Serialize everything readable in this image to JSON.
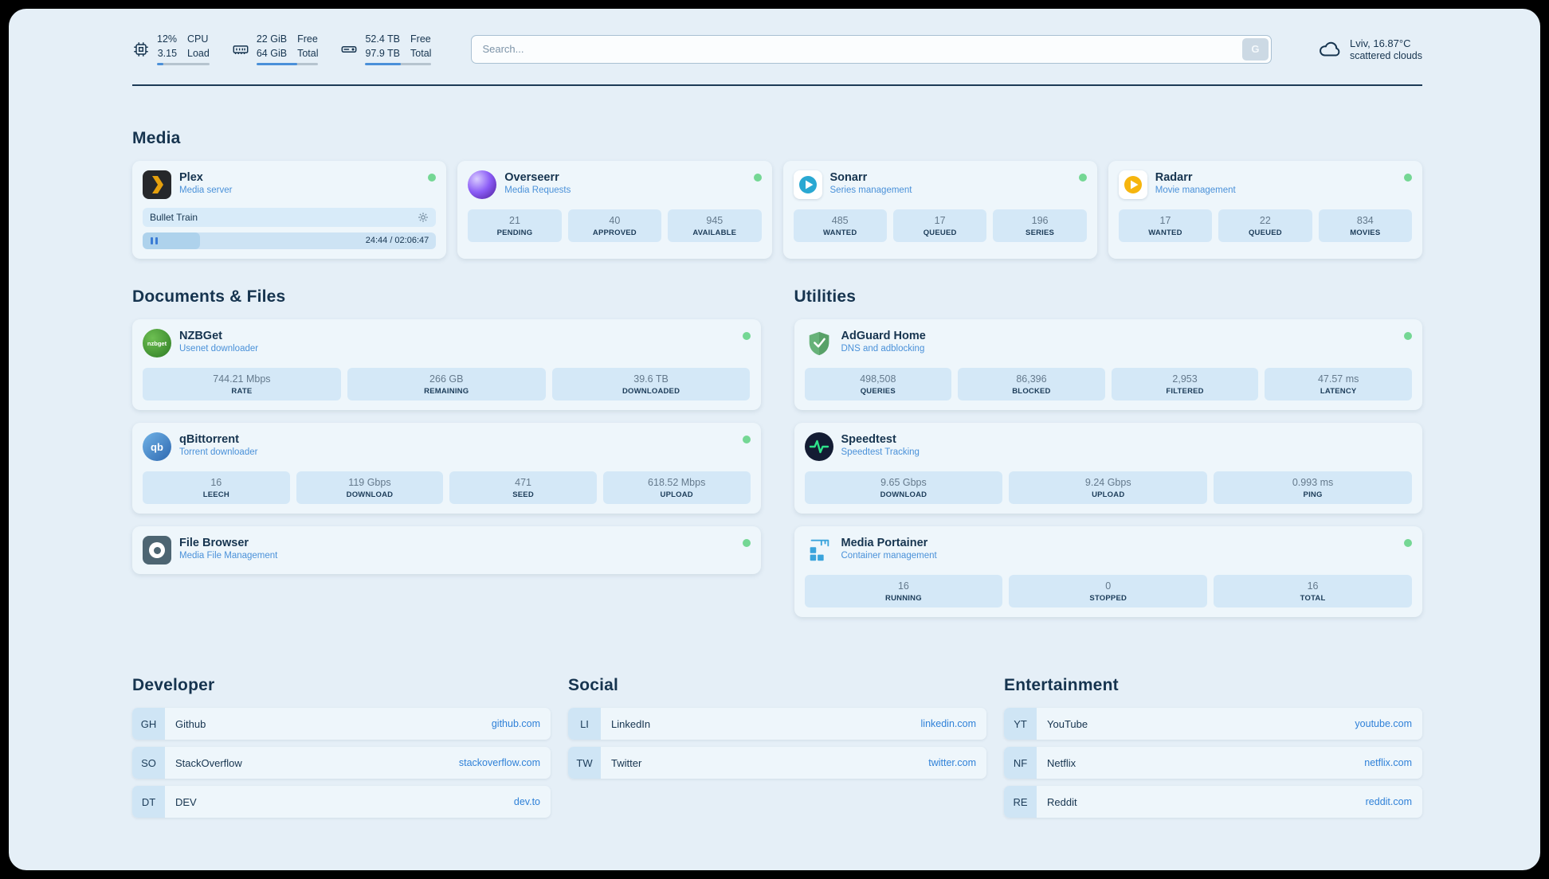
{
  "header": {
    "cpu": {
      "value": "12%",
      "label": "CPU",
      "value2": "3.15",
      "label2": "Load",
      "progress": 12
    },
    "ram": {
      "value": "22 GiB",
      "label": "Free",
      "value2": "64 GiB",
      "label2": "Total",
      "progress": 66
    },
    "disk": {
      "value": "52.4 TB",
      "label": "Free",
      "value2": "97.9 TB",
      "label2": "Total",
      "progress": 54
    },
    "search": {
      "placeholder": "Search...",
      "button_label": "G"
    },
    "weather": {
      "location": "Lviv, 16.87°C",
      "condition": "scattered clouds"
    }
  },
  "colors": {
    "accent_blue": "#4a91d9",
    "status_green": "#74d794",
    "link_blue": "#2f81d8",
    "page_bg": "#e5eff7",
    "stat_bg": "#d4e8f7"
  },
  "sections": {
    "media": {
      "title": "Media",
      "plex": {
        "name": "Plex",
        "subtitle": "Media server",
        "now_playing": "Bullet Train",
        "time": "24:44 / 02:06:47",
        "progress_percent": 19.5
      },
      "overseerr": {
        "name": "Overseerr",
        "subtitle": "Media Requests",
        "stats": [
          {
            "value": "21",
            "label": "PENDING"
          },
          {
            "value": "40",
            "label": "APPROVED"
          },
          {
            "value": "945",
            "label": "AVAILABLE"
          }
        ]
      },
      "sonarr": {
        "name": "Sonarr",
        "subtitle": "Series management",
        "stats": [
          {
            "value": "485",
            "label": "WANTED"
          },
          {
            "value": "17",
            "label": "QUEUED"
          },
          {
            "value": "196",
            "label": "SERIES"
          }
        ]
      },
      "radarr": {
        "name": "Radarr",
        "subtitle": "Movie management",
        "stats": [
          {
            "value": "17",
            "label": "WANTED"
          },
          {
            "value": "22",
            "label": "QUEUED"
          },
          {
            "value": "834",
            "label": "MOVIES"
          }
        ]
      }
    },
    "documents": {
      "title": "Documents & Files",
      "nzbget": {
        "name": "NZBGet",
        "subtitle": "Usenet downloader",
        "icon_text": "nzbget",
        "stats": [
          {
            "value": "744.21 Mbps",
            "label": "RATE"
          },
          {
            "value": "266 GB",
            "label": "REMAINING"
          },
          {
            "value": "39.6 TB",
            "label": "DOWNLOADED"
          }
        ]
      },
      "qbittorrent": {
        "name": "qBittorrent",
        "subtitle": "Torrent downloader",
        "icon_text": "qb",
        "stats": [
          {
            "value": "16",
            "label": "LEECH"
          },
          {
            "value": "119 Gbps",
            "label": "DOWNLOAD"
          },
          {
            "value": "471",
            "label": "SEED"
          },
          {
            "value": "618.52 Mbps",
            "label": "UPLOAD"
          }
        ]
      },
      "filebrowser": {
        "name": "File Browser",
        "subtitle": "Media File Management"
      }
    },
    "utilities": {
      "title": "Utilities",
      "adguard": {
        "name": "AdGuard Home",
        "subtitle": "DNS and adblocking",
        "stats": [
          {
            "value": "498,508",
            "label": "QUERIES"
          },
          {
            "value": "86,396",
            "label": "BLOCKED"
          },
          {
            "value": "2,953",
            "label": "FILTERED"
          },
          {
            "value": "47.57 ms",
            "label": "LATENCY"
          }
        ]
      },
      "speedtest": {
        "name": "Speedtest",
        "subtitle": "Speedtest Tracking",
        "stats": [
          {
            "value": "9.65 Gbps",
            "label": "DOWNLOAD"
          },
          {
            "value": "9.24 Gbps",
            "label": "UPLOAD"
          },
          {
            "value": "0.993 ms",
            "label": "PING"
          }
        ]
      },
      "portainer": {
        "name": "Media Portainer",
        "subtitle": "Container management",
        "stats": [
          {
            "value": "16",
            "label": "RUNNING"
          },
          {
            "value": "0",
            "label": "STOPPED"
          },
          {
            "value": "16",
            "label": "TOTAL"
          }
        ]
      }
    }
  },
  "bookmarks": {
    "developer": {
      "title": "Developer",
      "items": [
        {
          "abbr": "GH",
          "name": "Github",
          "url": "github.com"
        },
        {
          "abbr": "SO",
          "name": "StackOverflow",
          "url": "stackoverflow.com"
        },
        {
          "abbr": "DT",
          "name": "DEV",
          "url": "dev.to"
        }
      ]
    },
    "social": {
      "title": "Social",
      "items": [
        {
          "abbr": "LI",
          "name": "LinkedIn",
          "url": "linkedin.com"
        },
        {
          "abbr": "TW",
          "name": "Twitter",
          "url": "twitter.com"
        }
      ]
    },
    "entertainment": {
      "title": "Entertainment",
      "items": [
        {
          "abbr": "YT",
          "name": "YouTube",
          "url": "youtube.com"
        },
        {
          "abbr": "NF",
          "name": "Netflix",
          "url": "netflix.com"
        },
        {
          "abbr": "RE",
          "name": "Reddit",
          "url": "reddit.com"
        }
      ]
    }
  }
}
